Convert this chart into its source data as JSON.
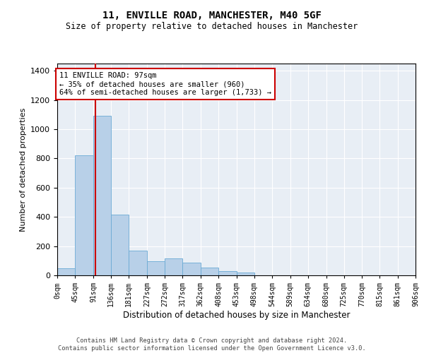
{
  "title1": "11, ENVILLE ROAD, MANCHESTER, M40 5GF",
  "title2": "Size of property relative to detached houses in Manchester",
  "xlabel": "Distribution of detached houses by size in Manchester",
  "ylabel": "Number of detached properties",
  "bin_edges": [
    0,
    45,
    91,
    136,
    181,
    227,
    272,
    317,
    362,
    408,
    453,
    498,
    544,
    589,
    634,
    680,
    725,
    770,
    815,
    861,
    906
  ],
  "bar_heights": [
    50,
    820,
    1090,
    415,
    170,
    95,
    115,
    85,
    55,
    30,
    20,
    0,
    0,
    0,
    0,
    0,
    0,
    0,
    0,
    0
  ],
  "bar_color": "#b8d0e8",
  "bar_edge_color": "#6aaad4",
  "vline_x": 97,
  "vline_color": "#cc0000",
  "annotation_text": "11 ENVILLE ROAD: 97sqm\n← 35% of detached houses are smaller (960)\n64% of semi-detached houses are larger (1,733) →",
  "annotation_box_color": "#ffffff",
  "annotation_box_edge": "#cc0000",
  "ylim": [
    0,
    1450
  ],
  "yticks": [
    0,
    200,
    400,
    600,
    800,
    1000,
    1200,
    1400
  ],
  "background_color": "#e8eef5",
  "grid_color": "#ffffff",
  "footer_text": "Contains HM Land Registry data © Crown copyright and database right 2024.\nContains public sector information licensed under the Open Government Licence v3.0.",
  "tick_labels": [
    "0sqm",
    "45sqm",
    "91sqm",
    "136sqm",
    "181sqm",
    "227sqm",
    "272sqm",
    "317sqm",
    "362sqm",
    "408sqm",
    "453sqm",
    "498sqm",
    "544sqm",
    "589sqm",
    "634sqm",
    "680sqm",
    "725sqm",
    "770sqm",
    "815sqm",
    "861sqm",
    "906sqm"
  ],
  "ann_fontsize": 7.5,
  "title1_fontsize": 10,
  "title2_fontsize": 8.5,
  "ylabel_fontsize": 8,
  "xlabel_fontsize": 8.5
}
